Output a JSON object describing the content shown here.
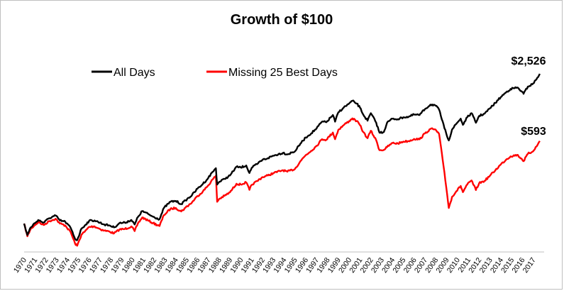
{
  "chart_data": {
    "type": "line",
    "title": "Growth of $100",
    "xlabel": "",
    "ylabel": "",
    "log_scale": true,
    "grid": false,
    "legend_position": "top-left",
    "x_categories": [
      "1970",
      "1971",
      "1972",
      "1973",
      "1974",
      "1975",
      "1976",
      "1977",
      "1978",
      "1979",
      "1980",
      "1981",
      "1982",
      "1983",
      "1984",
      "1985",
      "1986",
      "1987",
      "1988",
      "1989",
      "1990",
      "1991",
      "1992",
      "1993",
      "1994",
      "1995",
      "1996",
      "1997",
      "1998",
      "1999",
      "2000",
      "2001",
      "2002",
      "2003",
      "2004",
      "2005",
      "2006",
      "2007",
      "2008",
      "2009",
      "2010",
      "2011",
      "2012",
      "2013",
      "2014",
      "2015",
      "2016",
      "2017"
    ],
    "series": [
      {
        "name": "All Days",
        "color": "#000000",
        "end_label": "$2,526",
        "points": [
          [
            1970.0,
            100
          ],
          [
            1970.3,
            78
          ],
          [
            1970.6,
            92
          ],
          [
            1971.0,
            101
          ],
          [
            1971.3,
            108
          ],
          [
            1971.8,
            102
          ],
          [
            1972.3,
            112
          ],
          [
            1972.9,
            119
          ],
          [
            1973.3,
            107
          ],
          [
            1973.8,
            104
          ],
          [
            1974.3,
            91
          ],
          [
            1974.7,
            72
          ],
          [
            1974.9,
            70
          ],
          [
            1975.3,
            90
          ],
          [
            1975.6,
            96
          ],
          [
            1976.0,
            106
          ],
          [
            1976.5,
            107
          ],
          [
            1977.0,
            102
          ],
          [
            1977.4,
            98
          ],
          [
            1977.9,
            96
          ],
          [
            1978.3,
            92
          ],
          [
            1978.8,
            101
          ],
          [
            1979.3,
            102
          ],
          [
            1979.9,
            108
          ],
          [
            1980.2,
            98
          ],
          [
            1980.5,
            115
          ],
          [
            1980.9,
            131
          ],
          [
            1981.5,
            122
          ],
          [
            1981.9,
            116
          ],
          [
            1982.5,
            110
          ],
          [
            1982.9,
            140
          ],
          [
            1983.5,
            160
          ],
          [
            1984.0,
            163
          ],
          [
            1984.5,
            152
          ],
          [
            1984.9,
            165
          ],
          [
            1985.5,
            185
          ],
          [
            1986.0,
            212
          ],
          [
            1986.5,
            235
          ],
          [
            1987.0,
            268
          ],
          [
            1987.4,
            305
          ],
          [
            1987.7,
            330
          ],
          [
            1987.82,
            232
          ],
          [
            1988.0,
            245
          ],
          [
            1988.5,
            262
          ],
          [
            1989.0,
            282
          ],
          [
            1989.6,
            340
          ],
          [
            1990.0,
            335
          ],
          [
            1990.5,
            350
          ],
          [
            1990.8,
            298
          ],
          [
            1991.0,
            332
          ],
          [
            1991.5,
            360
          ],
          [
            1992.0,
            395
          ],
          [
            1992.5,
            410
          ],
          [
            1993.0,
            432
          ],
          [
            1993.9,
            460
          ],
          [
            1994.3,
            445
          ],
          [
            1995.0,
            475
          ],
          [
            1995.5,
            560
          ],
          [
            1996.0,
            640
          ],
          [
            1996.5,
            700
          ],
          [
            1997.0,
            780
          ],
          [
            1997.5,
            900
          ],
          [
            1997.9,
            890
          ],
          [
            1998.5,
            1040
          ],
          [
            1998.7,
            900
          ],
          [
            1999.0,
            1100
          ],
          [
            1999.5,
            1220
          ],
          [
            2000.0,
            1330
          ],
          [
            2000.3,
            1410
          ],
          [
            2000.7,
            1330
          ],
          [
            2001.0,
            1220
          ],
          [
            2001.3,
            1050
          ],
          [
            2001.7,
            920
          ],
          [
            2002.0,
            1080
          ],
          [
            2002.5,
            880
          ],
          [
            2002.8,
            710
          ],
          [
            2003.2,
            720
          ],
          [
            2003.5,
            880
          ],
          [
            2004.0,
            960
          ],
          [
            2004.5,
            950
          ],
          [
            2005.0,
            990
          ],
          [
            2005.5,
            1000
          ],
          [
            2006.0,
            1050
          ],
          [
            2006.5,
            1040
          ],
          [
            2007.0,
            1180
          ],
          [
            2007.5,
            1300
          ],
          [
            2007.9,
            1290
          ],
          [
            2008.3,
            1170
          ],
          [
            2008.8,
            780
          ],
          [
            2009.2,
            600
          ],
          [
            2009.5,
            760
          ],
          [
            2009.9,
            860
          ],
          [
            2010.3,
            960
          ],
          [
            2010.5,
            840
          ],
          [
            2010.9,
            990
          ],
          [
            2011.3,
            1080
          ],
          [
            2011.7,
            880
          ],
          [
            2012.0,
            1020
          ],
          [
            2012.5,
            1070
          ],
          [
            2013.0,
            1200
          ],
          [
            2013.5,
            1350
          ],
          [
            2014.0,
            1530
          ],
          [
            2014.5,
            1700
          ],
          [
            2014.9,
            1820
          ],
          [
            2015.5,
            1880
          ],
          [
            2015.9,
            1740
          ],
          [
            2016.1,
            1640
          ],
          [
            2016.5,
            1920
          ],
          [
            2016.9,
            2010
          ],
          [
            2017.3,
            2250
          ],
          [
            2017.6,
            2526
          ]
        ]
      },
      {
        "name": "Missing 25 Best Days",
        "color": "#ff0000",
        "end_label": "$593",
        "points": [
          [
            1970.0,
            100
          ],
          [
            1970.3,
            76
          ],
          [
            1970.6,
            89
          ],
          [
            1971.0,
            97
          ],
          [
            1971.3,
            103
          ],
          [
            1971.8,
            97
          ],
          [
            1972.3,
            105
          ],
          [
            1972.9,
            111
          ],
          [
            1973.3,
            100
          ],
          [
            1973.8,
            96
          ],
          [
            1974.3,
            83
          ],
          [
            1974.7,
            65
          ],
          [
            1974.9,
            62
          ],
          [
            1975.3,
            79
          ],
          [
            1975.6,
            84
          ],
          [
            1976.0,
            93
          ],
          [
            1976.5,
            94
          ],
          [
            1977.0,
            89
          ],
          [
            1977.4,
            86
          ],
          [
            1977.9,
            84
          ],
          [
            1978.3,
            81
          ],
          [
            1978.8,
            88
          ],
          [
            1979.3,
            89
          ],
          [
            1979.9,
            94
          ],
          [
            1980.2,
            85
          ],
          [
            1980.5,
            100
          ],
          [
            1980.9,
            114
          ],
          [
            1981.5,
            106
          ],
          [
            1981.9,
            101
          ],
          [
            1982.5,
            95
          ],
          [
            1982.9,
            120
          ],
          [
            1983.5,
            137
          ],
          [
            1984.0,
            140
          ],
          [
            1984.5,
            130
          ],
          [
            1984.9,
            141
          ],
          [
            1985.5,
            158
          ],
          [
            1986.0,
            181
          ],
          [
            1986.5,
            200
          ],
          [
            1987.0,
            228
          ],
          [
            1987.4,
            259
          ],
          [
            1987.7,
            280
          ],
          [
            1987.82,
            160
          ],
          [
            1988.0,
            170
          ],
          [
            1988.5,
            182
          ],
          [
            1989.0,
            196
          ],
          [
            1989.6,
            236
          ],
          [
            1990.0,
            232
          ],
          [
            1990.5,
            243
          ],
          [
            1990.8,
            207
          ],
          [
            1991.0,
            230
          ],
          [
            1991.5,
            250
          ],
          [
            1992.0,
            272
          ],
          [
            1992.5,
            282
          ],
          [
            1993.0,
            297
          ],
          [
            1993.9,
            316
          ],
          [
            1994.3,
            306
          ],
          [
            1995.0,
            325
          ],
          [
            1995.5,
            384
          ],
          [
            1996.0,
            438
          ],
          [
            1996.5,
            480
          ],
          [
            1997.0,
            535
          ],
          [
            1997.5,
            617
          ],
          [
            1997.9,
            610
          ],
          [
            1998.5,
            713
          ],
          [
            1998.7,
            617
          ],
          [
            1999.0,
            755
          ],
          [
            1999.5,
            836
          ],
          [
            2000.0,
            912
          ],
          [
            2000.3,
            966
          ],
          [
            2000.7,
            912
          ],
          [
            2001.0,
            836
          ],
          [
            2001.3,
            720
          ],
          [
            2001.7,
            630
          ],
          [
            2002.0,
            740
          ],
          [
            2002.5,
            603
          ],
          [
            2002.8,
            487
          ],
          [
            2003.2,
            490
          ],
          [
            2003.5,
            520
          ],
          [
            2004.0,
            568
          ],
          [
            2004.5,
            562
          ],
          [
            2005.0,
            586
          ],
          [
            2005.5,
            592
          ],
          [
            2006.0,
            621
          ],
          [
            2006.5,
            615
          ],
          [
            2007.0,
            698
          ],
          [
            2007.5,
            769
          ],
          [
            2007.9,
            763
          ],
          [
            2008.3,
            692
          ],
          [
            2008.8,
            300
          ],
          [
            2009.2,
            140
          ],
          [
            2009.5,
            178
          ],
          [
            2009.9,
            201
          ],
          [
            2010.3,
            225
          ],
          [
            2010.5,
            197
          ],
          [
            2010.9,
            232
          ],
          [
            2011.3,
            253
          ],
          [
            2011.7,
            206
          ],
          [
            2012.0,
            239
          ],
          [
            2012.5,
            251
          ],
          [
            2013.0,
            281
          ],
          [
            2013.5,
            316
          ],
          [
            2014.0,
            358
          ],
          [
            2014.5,
            398
          ],
          [
            2014.9,
            426
          ],
          [
            2015.5,
            440
          ],
          [
            2015.9,
            407
          ],
          [
            2016.1,
            384
          ],
          [
            2016.5,
            450
          ],
          [
            2016.9,
            470
          ],
          [
            2017.3,
            527
          ],
          [
            2017.6,
            593
          ]
        ]
      }
    ]
  }
}
